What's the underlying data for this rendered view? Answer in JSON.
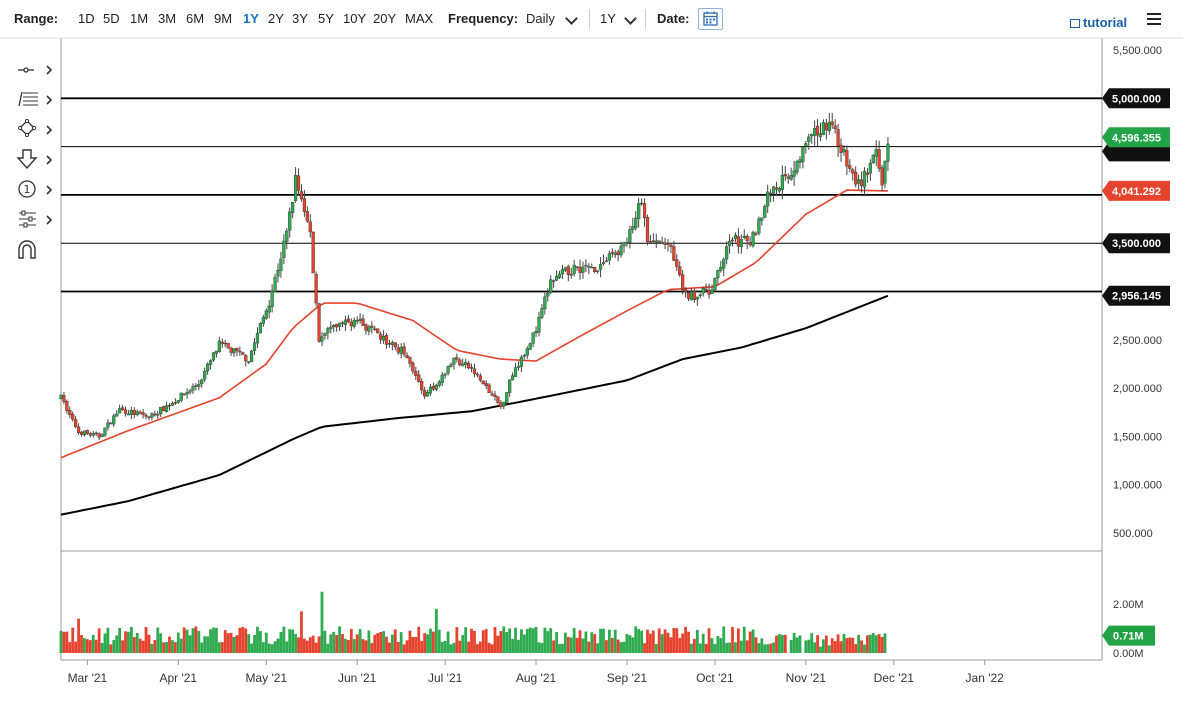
{
  "toolbar": {
    "range_label": "Range:",
    "ranges": [
      "1D",
      "5D",
      "1M",
      "3M",
      "6M",
      "9M",
      "1Y",
      "2Y",
      "3Y",
      "5Y",
      "10Y",
      "20Y",
      "MAX"
    ],
    "active_range": "1Y",
    "frequency_label": "Frequency:",
    "frequency_value": "Daily",
    "period_value": "1Y",
    "date_label": "Date:",
    "tutorial_label": "tutorial"
  },
  "tools": [
    {
      "name": "crosshair-tool-icon"
    },
    {
      "name": "fibonacci-tool-icon"
    },
    {
      "name": "shape-tool-icon"
    },
    {
      "name": "arrow-down-tool-icon"
    },
    {
      "name": "counter-tool-icon"
    },
    {
      "name": "studies-tool-icon"
    },
    {
      "name": "magnet-tool-icon"
    }
  ],
  "chart_data": {
    "type": "candlestick",
    "asset_note": "",
    "xlim": [
      "2021-02-20",
      "2022-02-10"
    ],
    "ylim": [
      0,
      5500
    ],
    "y_ticks": [
      500,
      1000,
      1500,
      2000,
      2500,
      3000,
      3500,
      4000,
      4500,
      5000,
      5500
    ],
    "y_tick_labels": [
      "500.000",
      "1,000.000",
      "1,500.000",
      "2,000.000",
      "2,500.000",
      "",
      "3,500.000",
      "",
      "",
      "5,000.000",
      "5,500.000"
    ],
    "x_tick_labels": [
      "Mar '21",
      "Apr '21",
      "May '21",
      "Jun '21",
      "Jul '21",
      "Aug '21",
      "Sep '21",
      "Oct '21",
      "Nov '21",
      "Dec '21",
      "Jan '22"
    ],
    "x_tick_dates": [
      "2021-03-01",
      "2021-04-01",
      "2021-05-01",
      "2021-06-01",
      "2021-07-01",
      "2021-08-01",
      "2021-09-01",
      "2021-10-01",
      "2021-11-01",
      "2021-12-01",
      "2022-01-01"
    ],
    "horizontal_lines": [
      {
        "value": 5000,
        "label": "5,000.000",
        "style": "bold"
      },
      {
        "value": 4500,
        "label": "",
        "style": "thin"
      },
      {
        "value": 4000,
        "label": "",
        "style": "bold"
      },
      {
        "value": 3500,
        "label": "3,500.000",
        "style": "thin"
      },
      {
        "value": 3000,
        "label": "2,956.145",
        "style": "bold"
      }
    ],
    "last_price": {
      "value": 4596.355,
      "label": "4,596.355",
      "color": "#23a347"
    },
    "ma50_label": {
      "value": 4041.292,
      "label": "4,041.292",
      "color": "#e5432d"
    },
    "ma200_label": {
      "value": 2956.145,
      "label": "2,956.145",
      "color": "#111111"
    },
    "price_path_key": [
      [
        "2021-02-20",
        1900
      ],
      [
        "2021-02-26",
        1550
      ],
      [
        "2021-03-05",
        1500
      ],
      [
        "2021-03-12",
        1780
      ],
      [
        "2021-03-22",
        1700
      ],
      [
        "2021-03-30",
        1850
      ],
      [
        "2021-04-08",
        2050
      ],
      [
        "2021-04-15",
        2450
      ],
      [
        "2021-04-25",
        2300
      ],
      [
        "2021-05-02",
        2900
      ],
      [
        "2021-05-08",
        3600
      ],
      [
        "2021-05-11",
        4150
      ],
      [
        "2021-05-16",
        3600
      ],
      [
        "2021-05-19",
        2500
      ],
      [
        "2021-05-25",
        2650
      ],
      [
        "2021-06-01",
        2700
      ],
      [
        "2021-06-10",
        2500
      ],
      [
        "2021-06-18",
        2350
      ],
      [
        "2021-06-24",
        1900
      ],
      [
        "2021-07-04",
        2300
      ],
      [
        "2021-07-10",
        2200
      ],
      [
        "2021-07-20",
        1800
      ],
      [
        "2021-07-24",
        2150
      ],
      [
        "2021-08-01",
        2600
      ],
      [
        "2021-08-06",
        3100
      ],
      [
        "2021-08-14",
        3250
      ],
      [
        "2021-08-22",
        3250
      ],
      [
        "2021-09-01",
        3500
      ],
      [
        "2021-09-06",
        3950
      ],
      [
        "2021-09-08",
        3500
      ],
      [
        "2021-09-15",
        3500
      ],
      [
        "2021-09-21",
        2950
      ],
      [
        "2021-09-30",
        3000
      ],
      [
        "2021-10-06",
        3550
      ],
      [
        "2021-10-13",
        3500
      ],
      [
        "2021-10-20",
        4050
      ],
      [
        "2021-10-26",
        4200
      ],
      [
        "2021-11-02",
        4550
      ],
      [
        "2021-11-09",
        4780
      ],
      [
        "2021-11-16",
        4250
      ],
      [
        "2021-11-19",
        4100
      ],
      [
        "2021-11-25",
        4400
      ],
      [
        "2021-11-27",
        4100
      ],
      [
        "2021-11-29",
        4596
      ]
    ],
    "ma50_key": [
      [
        "2021-02-20",
        1280
      ],
      [
        "2021-03-15",
        1560
      ],
      [
        "2021-04-15",
        1900
      ],
      [
        "2021-05-01",
        2250
      ],
      [
        "2021-05-10",
        2620
      ],
      [
        "2021-05-20",
        2880
      ],
      [
        "2021-06-01",
        2880
      ],
      [
        "2021-06-20",
        2700
      ],
      [
        "2021-07-05",
        2390
      ],
      [
        "2021-07-20",
        2300
      ],
      [
        "2021-08-01",
        2280
      ],
      [
        "2021-08-15",
        2520
      ],
      [
        "2021-09-01",
        2800
      ],
      [
        "2021-09-15",
        3020
      ],
      [
        "2021-10-01",
        3050
      ],
      [
        "2021-10-15",
        3300
      ],
      [
        "2021-11-01",
        3800
      ],
      [
        "2021-11-15",
        4050
      ],
      [
        "2021-11-29",
        4041
      ]
    ],
    "ma200_key": [
      [
        "2021-02-20",
        690
      ],
      [
        "2021-03-15",
        830
      ],
      [
        "2021-04-15",
        1100
      ],
      [
        "2021-05-10",
        1470
      ],
      [
        "2021-05-20",
        1600
      ],
      [
        "2021-06-15",
        1690
      ],
      [
        "2021-07-10",
        1760
      ],
      [
        "2021-08-01",
        1890
      ],
      [
        "2021-09-01",
        2080
      ],
      [
        "2021-09-20",
        2300
      ],
      [
        "2021-10-10",
        2420
      ],
      [
        "2021-11-01",
        2620
      ],
      [
        "2021-11-29",
        2956
      ]
    ],
    "volume": {
      "ylim": [
        0,
        2.8
      ],
      "y_tick_labels": [
        "0.00M",
        "2.00M"
      ],
      "y_ticks": [
        0,
        2.0
      ],
      "last": {
        "value": 0.71,
        "label": "0.71M",
        "color": "#23a347"
      },
      "spikes": [
        [
          "2021-02-26",
          1.4
        ],
        [
          "2021-05-13",
          1.7
        ],
        [
          "2021-05-20",
          2.5
        ],
        [
          "2021-06-28",
          1.8
        ]
      ]
    }
  }
}
